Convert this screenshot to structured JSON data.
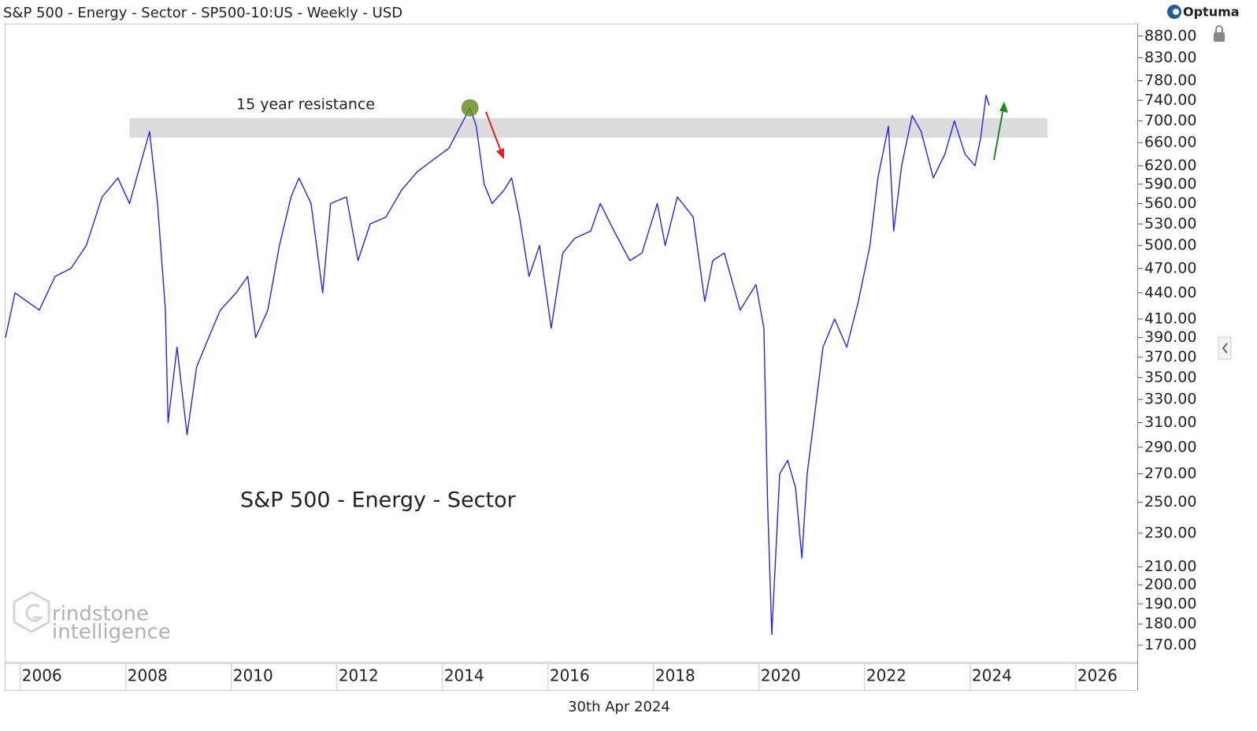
{
  "chart_data": {
    "type": "line",
    "title": "S&P 500 - Energy - Sector  - SP500-10:US - Weekly - USD",
    "brand": "Optuma",
    "date_label": "30th Apr 2024",
    "watermark": [
      "rindstone",
      "intelligence"
    ],
    "annotations": {
      "resistance_label": "15 year resistance"
    },
    "resistance_band": {
      "x": [
        2008.07,
        2025.46
      ],
      "y": [
        669,
        705
      ],
      "color": "#dcdcdc"
    },
    "highlight": {
      "x": 2014.52,
      "y": 725,
      "color": "#6b8e23"
    },
    "log_scale": true,
    "x": [
      2005.72,
      2005.9,
      2006.36,
      2006.66,
      2006.96,
      2007.25,
      2007.55,
      2007.85,
      2008.07,
      2008.3,
      2008.45,
      2008.6,
      2008.75,
      2008.8,
      2008.97,
      2009.16,
      2009.34,
      2009.57,
      2009.79,
      2010.09,
      2010.31,
      2010.46,
      2010.69,
      2010.91,
      2011.13,
      2011.28,
      2011.51,
      2011.73,
      2011.88,
      2012.18,
      2012.4,
      2012.63,
      2012.93,
      2013.22,
      2013.52,
      2013.82,
      2014.12,
      2014.34,
      2014.52,
      2014.64,
      2014.79,
      2014.94,
      2015.16,
      2015.31,
      2015.46,
      2015.64,
      2015.84,
      2016.06,
      2016.28,
      2016.51,
      2016.81,
      2016.99,
      2017.25,
      2017.55,
      2017.78,
      2018.07,
      2018.22,
      2018.45,
      2018.75,
      2018.97,
      2019.12,
      2019.34,
      2019.64,
      2019.94,
      2020.09,
      2020.16,
      2020.24,
      2020.39,
      2020.54,
      2020.69,
      2020.81,
      2020.91,
      2021.06,
      2021.21,
      2021.43,
      2021.66,
      2021.88,
      2022.1,
      2022.25,
      2022.45,
      2022.55,
      2022.7,
      2022.9,
      2023.07,
      2023.3,
      2023.52,
      2023.7,
      2023.9,
      2024.09,
      2024.2,
      2024.3,
      2024.36
    ],
    "series": [
      {
        "name": "S&P 500 - Energy - Sector",
        "color": "#2424f0",
        "values": [
          390,
          440,
          420,
          460,
          470,
          500,
          570,
          600,
          560,
          630,
          680,
          560,
          420,
          310,
          380,
          300,
          360,
          390,
          420,
          440,
          460,
          390,
          420,
          500,
          570,
          600,
          560,
          440,
          560,
          570,
          480,
          530,
          540,
          580,
          610,
          630,
          650,
          690,
          725,
          690,
          590,
          560,
          580,
          600,
          540,
          460,
          500,
          400,
          490,
          510,
          520,
          560,
          520,
          480,
          490,
          560,
          500,
          570,
          540,
          430,
          480,
          490,
          420,
          450,
          400,
          250,
          175,
          270,
          280,
          260,
          215,
          270,
          320,
          380,
          410,
          380,
          430,
          500,
          600,
          690,
          520,
          620,
          710,
          680,
          600,
          640,
          700,
          640,
          620,
          670,
          750,
          730
        ]
      }
    ],
    "xlim": [
      2005.72,
      2027.18
    ],
    "xticks": [
      2006,
      2008,
      2010,
      2012,
      2014,
      2016,
      2018,
      2020,
      2022,
      2024,
      2026
    ],
    "ylim": [
      162.6,
      910
    ],
    "yticks": [
      {
        "value": 170,
        "label": "170.00"
      },
      {
        "value": 180,
        "label": "180.00"
      },
      {
        "value": 190,
        "label": "190.00"
      },
      {
        "value": 200,
        "label": "200.00"
      },
      {
        "value": 210,
        "label": "210.00"
      },
      {
        "value": 230,
        "label": "230.00"
      },
      {
        "value": 250,
        "label": "250.00"
      },
      {
        "value": 270,
        "label": "270.00"
      },
      {
        "value": 290,
        "label": "290.00"
      },
      {
        "value": 310,
        "label": "310.00"
      },
      {
        "value": 330,
        "label": "330.00"
      },
      {
        "value": 350,
        "label": "350.00"
      },
      {
        "value": 370,
        "label": "370.00"
      },
      {
        "value": 390,
        "label": "390.00"
      },
      {
        "value": 410,
        "label": "410.00"
      },
      {
        "value": 440,
        "label": "440.00"
      },
      {
        "value": 470,
        "label": "470.00"
      },
      {
        "value": 500,
        "label": "500.00"
      },
      {
        "value": 530,
        "label": "530.00"
      },
      {
        "value": 560,
        "label": "560.00"
      },
      {
        "value": 590,
        "label": "590.00"
      },
      {
        "value": 620,
        "label": "620.00"
      },
      {
        "value": 660,
        "label": "660.00"
      },
      {
        "value": 700,
        "label": "700.00"
      },
      {
        "value": 740,
        "label": "740.00"
      },
      {
        "value": 780,
        "label": "780.00"
      },
      {
        "value": 830,
        "label": "830.00"
      },
      {
        "value": 880,
        "label": "880.00"
      }
    ]
  }
}
